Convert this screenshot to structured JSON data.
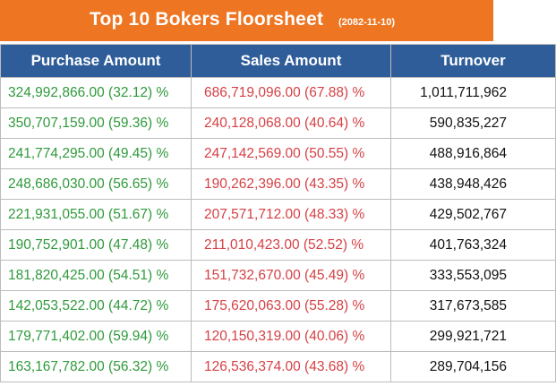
{
  "header": {
    "title": "Top 10 Bokers Floorsheet",
    "date": "(2082-11-10)",
    "accent_color": "#ee7521",
    "header_color": "#2f5d99"
  },
  "table": {
    "columns": [
      "Purchase Amount",
      "Sales Amount",
      "Turnover"
    ],
    "rows": [
      {
        "purchase": "324,992,866.00 (32.12) %",
        "sales": "686,719,096.00 (67.88) %",
        "turnover": "1,011,711,962"
      },
      {
        "purchase": "350,707,159.00 (59.36) %",
        "sales": "240,128,068.00 (40.64) %",
        "turnover": "590,835,227"
      },
      {
        "purchase": "241,774,295.00 (49.45) %",
        "sales": "247,142,569.00 (50.55) %",
        "turnover": "488,916,864"
      },
      {
        "purchase": "248,686,030.00 (56.65) %",
        "sales": "190,262,396.00 (43.35) %",
        "turnover": "438,948,426"
      },
      {
        "purchase": "221,931,055.00 (51.67) %",
        "sales": "207,571,712.00 (48.33) %",
        "turnover": "429,502,767"
      },
      {
        "purchase": "190,752,901.00 (47.48) %",
        "sales": "211,010,423.00 (52.52) %",
        "turnover": "401,763,324"
      },
      {
        "purchase": "181,820,425.00 (54.51) %",
        "sales": "151,732,670.00 (45.49) %",
        "turnover": "333,553,095"
      },
      {
        "purchase": "142,053,522.00 (44.72) %",
        "sales": "175,620,063.00 (55.28) %",
        "turnover": "317,673,585"
      },
      {
        "purchase": "179,771,402.00 (59.94) %",
        "sales": "120,150,319.00 (40.06) %",
        "turnover": "299,921,721"
      },
      {
        "purchase": "163,167,782.00 (56.32) %",
        "sales": "126,536,374.00 (43.68) %",
        "turnover": "289,704,156"
      }
    ]
  }
}
